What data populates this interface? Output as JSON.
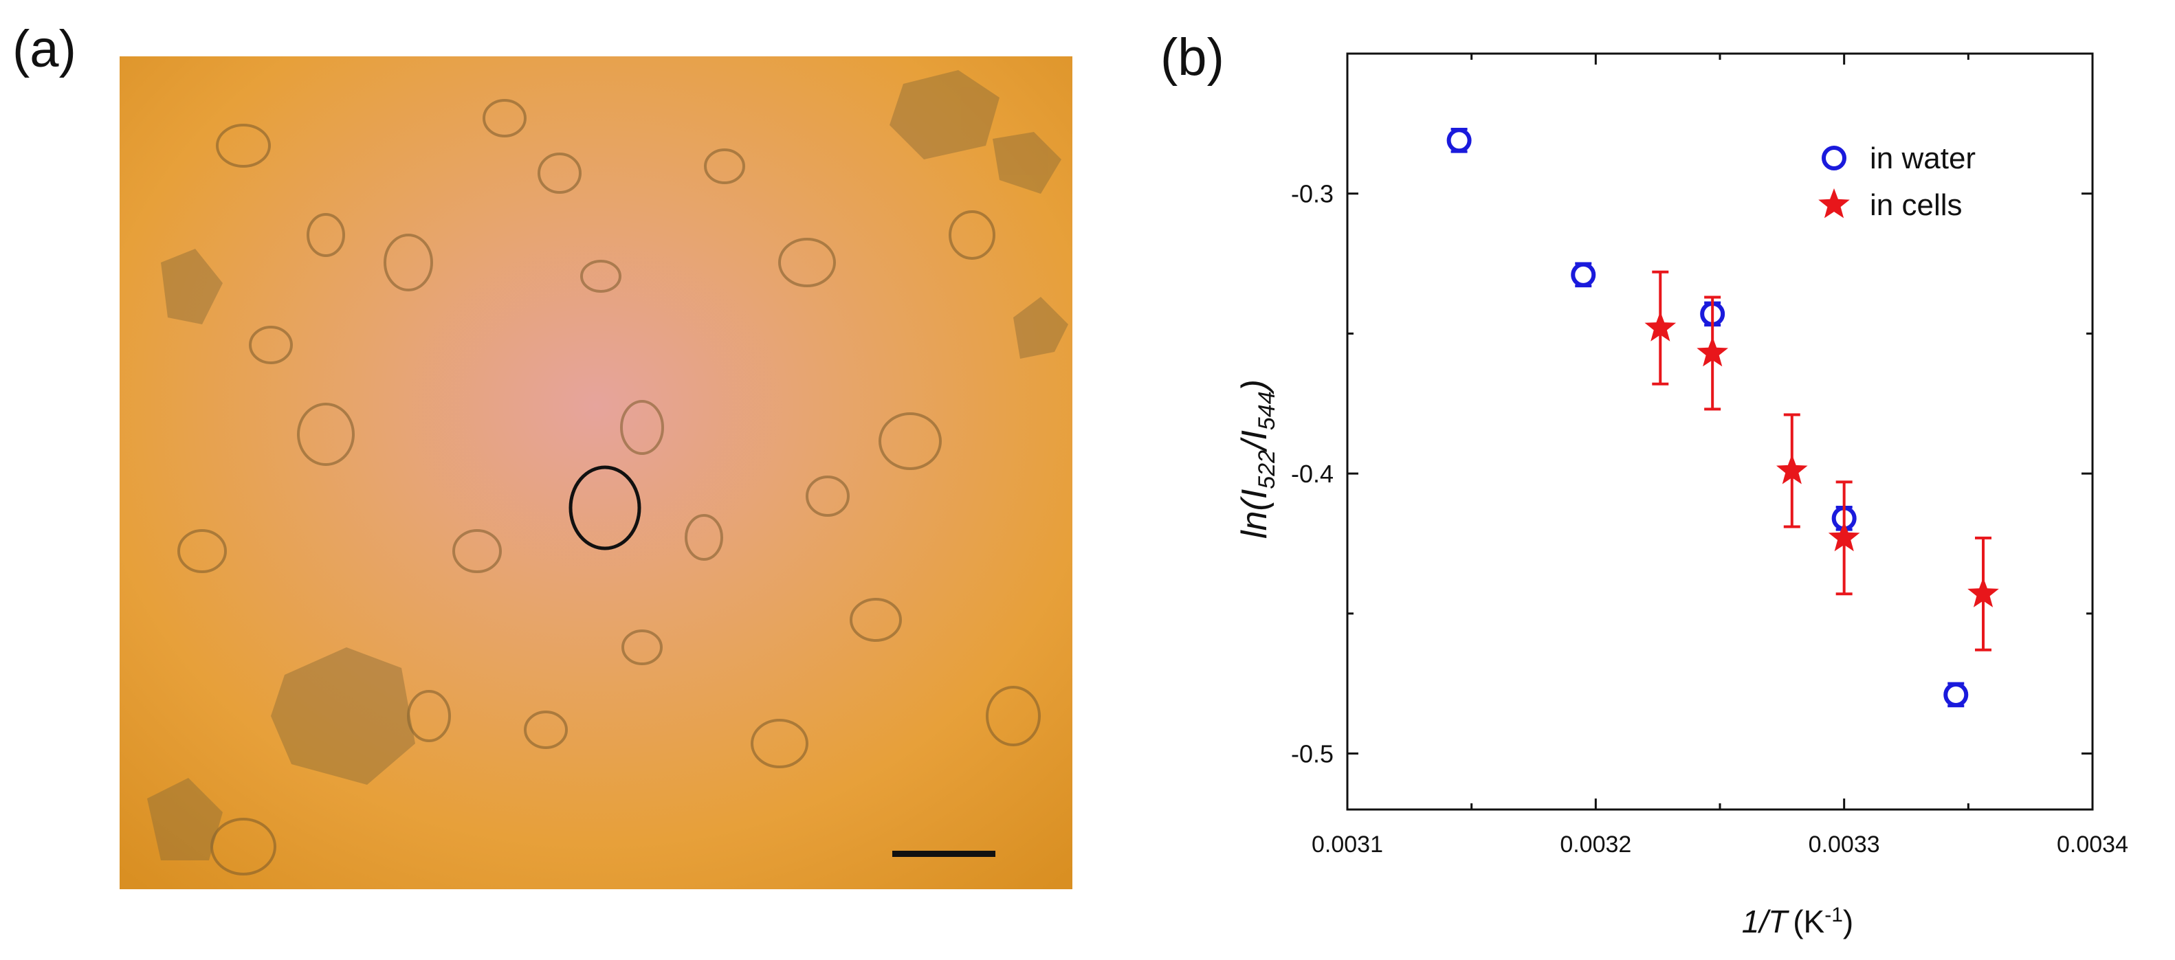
{
  "panels": {
    "a_label": "(a)",
    "b_label": "(b)"
  },
  "micrograph": {
    "description_colors": {
      "base": "#e8a13a",
      "center": "#e8a39a",
      "edge": "#d88a1e",
      "cell": "#8a7040"
    }
  },
  "chart_data": {
    "type": "scatter",
    "xlabel": "1/T",
    "xlabel_unit": "(K",
    "xlabel_unit_sup": "-1",
    "xlabel_unit_close": ")",
    "ylabel": "ln(I522/I544)",
    "ylabel_parts": {
      "a": "ln(I",
      "sub1": "522",
      "b": "/I",
      "sub2": "544",
      "c": ")"
    },
    "xlim": [
      0.0031,
      0.0034
    ],
    "ylim": [
      -0.52,
      -0.25
    ],
    "xticks": [
      0.0031,
      0.0032,
      0.0033,
      0.0034
    ],
    "xtick_labels": [
      "0.0031",
      "0.0032",
      "0.0033",
      "0.0034"
    ],
    "yticks": [
      -0.3,
      -0.4,
      -0.5
    ],
    "ytick_labels": [
      "-0.3",
      "-0.4",
      "-0.5"
    ],
    "legend_position": "top-right",
    "grid": false,
    "series": [
      {
        "name": "in water",
        "marker": "open-circle",
        "color": "#1a1adc",
        "points": [
          {
            "x": 0.003145,
            "y": -0.281,
            "err": 0.004
          },
          {
            "x": 0.003195,
            "y": -0.329,
            "err": 0.004
          },
          {
            "x": 0.003247,
            "y": -0.343,
            "err": 0.004
          },
          {
            "x": 0.0033,
            "y": -0.416,
            "err": 0.004
          },
          {
            "x": 0.003345,
            "y": -0.479,
            "err": 0.004
          }
        ]
      },
      {
        "name": "in cells",
        "marker": "star",
        "color": "#e8161b",
        "points": [
          {
            "x": 0.003226,
            "y": -0.348,
            "err": 0.02
          },
          {
            "x": 0.003247,
            "y": -0.357,
            "err": 0.02
          },
          {
            "x": 0.003279,
            "y": -0.399,
            "err": 0.02
          },
          {
            "x": 0.0033,
            "y": -0.423,
            "err": 0.02
          },
          {
            "x": 0.003356,
            "y": -0.443,
            "err": 0.02
          }
        ]
      }
    ]
  }
}
